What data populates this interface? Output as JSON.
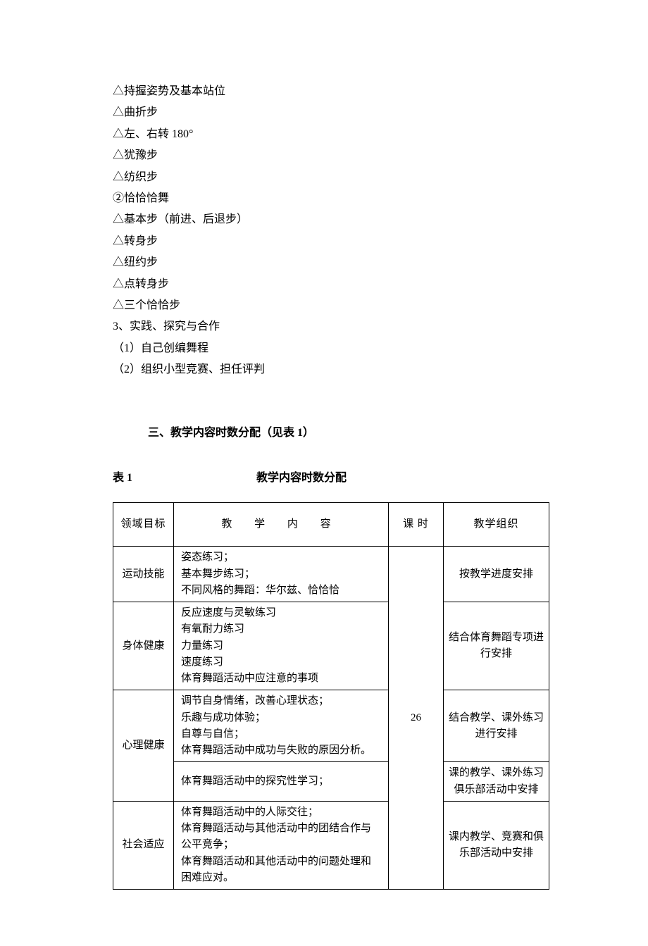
{
  "list": {
    "l1": "△持握姿势及基本站位",
    "l2": "△曲折步",
    "l3": "△左、右转 180°",
    "l4": "△犹豫步",
    "l5": "△纺织步",
    "l6": "②恰恰恰舞",
    "l7": "△基本步（前进、后退步）",
    "l8": "△转身步",
    "l9": "△纽约步",
    "l10": "△点转身步",
    "l11": "△三个恰恰步",
    "l12": "3、实践、探究与合作",
    "l13": "（1）自己创编舞程",
    "l14": "（2）组织小型竞赛、担任评判"
  },
  "section_heading": "三、教学内容时数分配（见表 1）",
  "table_label_num": "表 1",
  "table_label_title": "教学内容时数分配",
  "table": {
    "headers": {
      "h1": "领域目标",
      "h2": "教 学 内 容",
      "h3": "课  时",
      "h4": "教学组织"
    },
    "hours": "26",
    "r1": {
      "col1": "运动技能",
      "col2a": "姿态练习；",
      "col2b": "基本舞步练习；",
      "col2c": "不同风格的舞蹈：华尔兹、恰恰恰",
      "col4": "按教学进度安排"
    },
    "r2": {
      "col1": "身体健康",
      "col2a": "反应速度与灵敏练习",
      "col2b": "有氧耐力练习",
      "col2c": "力量练习",
      "col2d": "速度练习",
      "col2e": "体育舞蹈活动中应注意的事项",
      "col4": "结合体育舞蹈专项进行安排"
    },
    "r3": {
      "col1": "心理健康",
      "col2a": "调节自身情绪，改善心理状态；",
      "col2b": "乐趣与成功体验；",
      "col2c": "自尊与自信；",
      "col2d": "体育舞蹈活动中成功与失败的原因分析。",
      "col4": "结合教学、课外练习进行安排"
    },
    "r4": {
      "col2": "体育舞蹈活动中的探究性学习；",
      "col4": "课的教学、课外练习俱乐部活动中安排"
    },
    "r5": {
      "col1": "社会适应",
      "col2a": "体育舞蹈活动中的人际交往；",
      "col2b": "体育舞蹈活动与其他活动中的团结合作与公平竞争；",
      "col2c": "体育舞蹈活动和其他活动中的问题处理和困难应对。",
      "col4": "课内教学、竞赛和俱乐部活动中安排"
    }
  }
}
